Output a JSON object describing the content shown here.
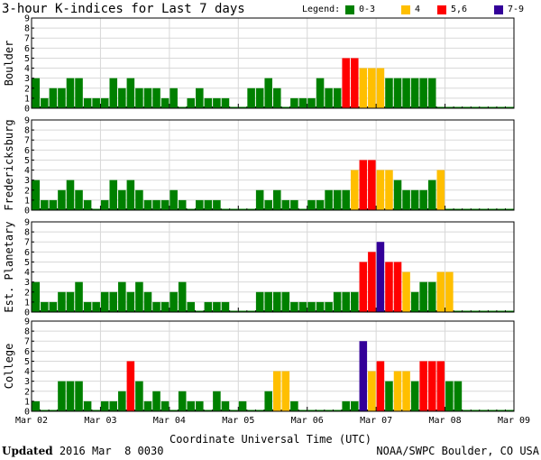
{
  "header": {
    "title": "3-hour K-indices for Last 7 days",
    "legend_label": "Legend:",
    "legend": [
      {
        "label": "0-3",
        "color": "#008000"
      },
      {
        "label": "4",
        "color": "#ffbf00"
      },
      {
        "label": "5,6",
        "color": "#ff0000"
      },
      {
        "label": "7-9",
        "color": "#330099"
      }
    ]
  },
  "footer": {
    "updated_label": "Updated",
    "updated_value": " 2016 Mar  8 0030",
    "credit": "NOAA/SWPC Boulder, CO USA"
  },
  "chart_data": {
    "type": "bar",
    "xlabel": "Coordinate Universal Time (UTC)",
    "x_tick_labels": [
      "Mar 02",
      "Mar 03",
      "Mar 04",
      "Mar 05",
      "Mar 06",
      "Mar 07",
      "Mar 08",
      "Mar 09"
    ],
    "y_ticks": [
      0,
      1,
      2,
      3,
      4,
      5,
      6,
      7,
      8,
      9
    ],
    "ylim": [
      0,
      9
    ],
    "bins_per_day": 8,
    "color_scale": [
      {
        "min": 0,
        "max": 3,
        "color": "#008000"
      },
      {
        "min": 4,
        "max": 4,
        "color": "#ffbf00"
      },
      {
        "min": 5,
        "max": 6,
        "color": "#ff0000"
      },
      {
        "min": 7,
        "max": 9,
        "color": "#330099"
      }
    ],
    "panels": [
      {
        "name": "Boulder",
        "values": [
          3,
          1,
          2,
          2,
          3,
          3,
          1,
          1,
          1,
          3,
          2,
          3,
          2,
          2,
          2,
          1,
          2,
          0,
          1,
          2,
          1,
          1,
          1,
          0,
          0,
          2,
          2,
          3,
          2,
          0,
          1,
          1,
          1,
          3,
          2,
          2,
          5,
          5,
          4,
          4,
          4,
          3,
          3,
          3,
          3,
          3,
          3,
          0,
          0,
          0,
          0,
          0,
          0,
          0,
          0,
          0
        ]
      },
      {
        "name": "Fredericksburg",
        "values": [
          3,
          1,
          1,
          2,
          3,
          2,
          1,
          0,
          1,
          3,
          2,
          3,
          2,
          1,
          1,
          1,
          2,
          1,
          0,
          1,
          1,
          1,
          0,
          0,
          0,
          0,
          2,
          1,
          2,
          1,
          1,
          0,
          1,
          1,
          2,
          2,
          2,
          4,
          5,
          5,
          4,
          4,
          3,
          2,
          2,
          2,
          3,
          4,
          0,
          0,
          0,
          0,
          0,
          0,
          0,
          0
        ]
      },
      {
        "name": "Est. Planetary",
        "values": [
          3,
          1,
          1,
          2,
          2,
          3,
          1,
          1,
          2,
          2,
          3,
          2,
          3,
          2,
          1,
          1,
          2,
          3,
          1,
          0,
          1,
          1,
          1,
          0,
          0,
          0,
          2,
          2,
          2,
          2,
          1,
          1,
          1,
          1,
          1,
          2,
          2,
          2,
          5,
          6,
          7,
          5,
          5,
          4,
          2,
          3,
          3,
          4,
          4,
          0,
          0,
          0,
          0,
          0,
          0,
          0
        ]
      },
      {
        "name": "College",
        "values": [
          1,
          0,
          0,
          3,
          3,
          3,
          1,
          0,
          1,
          1,
          2,
          5,
          3,
          1,
          2,
          1,
          0,
          2,
          1,
          1,
          0,
          2,
          1,
          0,
          1,
          0,
          0,
          2,
          4,
          4,
          1,
          0,
          0,
          0,
          0,
          0,
          1,
          1,
          7,
          4,
          5,
          3,
          4,
          4,
          3,
          5,
          5,
          5,
          3,
          3,
          0,
          0,
          0,
          0,
          0,
          0
        ]
      }
    ]
  }
}
